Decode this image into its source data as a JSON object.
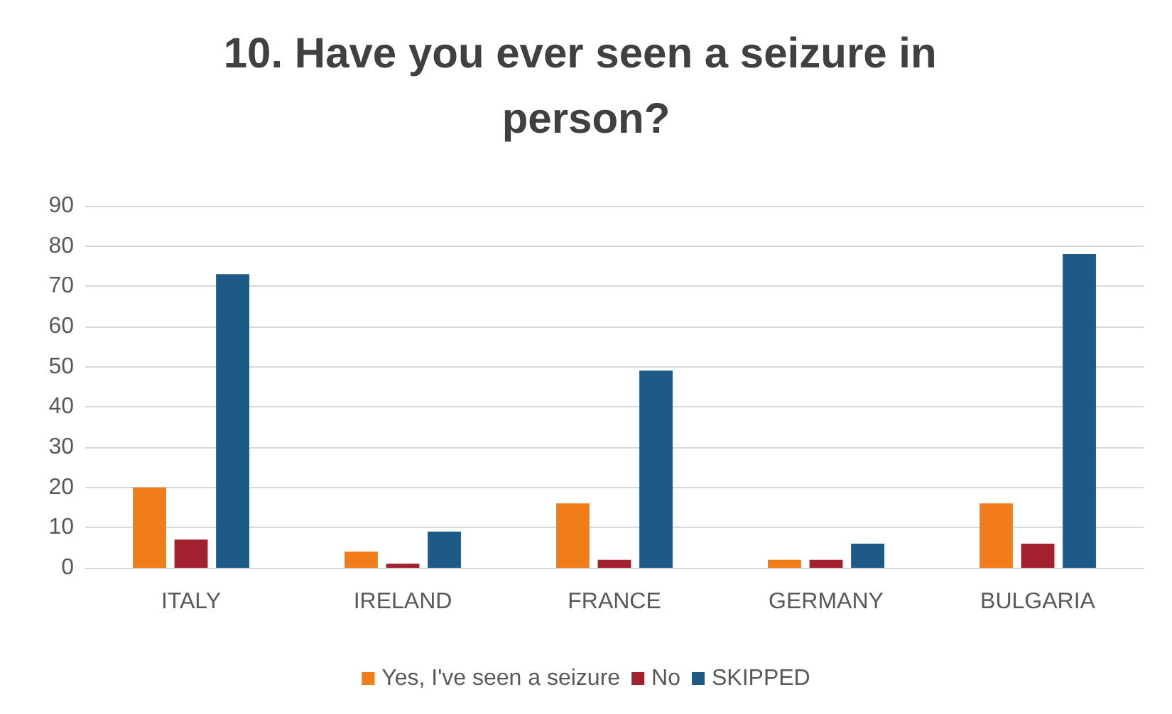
{
  "chart_data": {
    "type": "bar",
    "title": "10. Have you ever seen a seizure in person?",
    "categories": [
      "ITALY",
      "IRELAND",
      "FRANCE",
      "GERMANY",
      "BULGARIA"
    ],
    "series": [
      {
        "name": "Yes, I've seen a seizure",
        "color": "#f07d1a",
        "values": [
          20,
          4,
          16,
          2,
          16
        ]
      },
      {
        "name": "No",
        "color": "#a3202e",
        "values": [
          7,
          1,
          2,
          2,
          6
        ]
      },
      {
        "name": "SKIPPED",
        "color": "#1d5a87",
        "values": [
          73,
          9,
          49,
          6,
          78
        ]
      }
    ],
    "ylim": [
      0,
      90
    ],
    "yticks": [
      0,
      10,
      20,
      30,
      40,
      50,
      60,
      70,
      80,
      90
    ],
    "grid": "y",
    "legend": "bottom"
  }
}
